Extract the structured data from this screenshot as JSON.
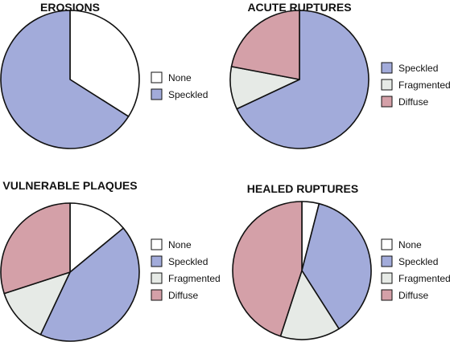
{
  "colors": {
    "none": "#ffffff",
    "speckled": "#a2abda",
    "fragmented": "#e6eae6",
    "diffuse": "#d4a0a8",
    "stroke": "#111111"
  },
  "chart_data": [
    {
      "type": "pie",
      "title": "EROSIONS",
      "slices": [
        {
          "label": "None",
          "value": 34,
          "color_key": "none"
        },
        {
          "label": "Speckled",
          "value": 66,
          "color_key": "speckled"
        }
      ],
      "legend": [
        "None",
        "Speckled"
      ],
      "legend_position": "right"
    },
    {
      "type": "pie",
      "title": "ACUTE RUPTURES",
      "slices": [
        {
          "label": "Speckled",
          "value": 68,
          "color_key": "speckled"
        },
        {
          "label": "Fragmented",
          "value": 10,
          "color_key": "fragmented"
        },
        {
          "label": "Diffuse",
          "value": 22,
          "color_key": "diffuse"
        }
      ],
      "legend": [
        "Speckled",
        "Fragmented",
        "Diffuse"
      ],
      "legend_position": "right"
    },
    {
      "type": "pie",
      "title": "VULNERABLE PLAQUES",
      "slices": [
        {
          "label": "None",
          "value": 14,
          "color_key": "none"
        },
        {
          "label": "Speckled",
          "value": 43,
          "color_key": "speckled"
        },
        {
          "label": "Fragmented",
          "value": 13,
          "color_key": "fragmented"
        },
        {
          "label": "Diffuse",
          "value": 30,
          "color_key": "diffuse"
        }
      ],
      "legend": [
        "None",
        "Speckled",
        "Fragmented",
        "Diffuse"
      ],
      "legend_position": "right"
    },
    {
      "type": "pie",
      "title": "HEALED RUPTURES",
      "slices": [
        {
          "label": "None",
          "value": 4,
          "color_key": "none"
        },
        {
          "label": "Speckled",
          "value": 37,
          "color_key": "speckled"
        },
        {
          "label": "Fragmented",
          "value": 14,
          "color_key": "fragmented"
        },
        {
          "label": "Diffuse",
          "value": 45,
          "color_key": "diffuse"
        }
      ],
      "legend": [
        "None",
        "Speckled",
        "Fragmented",
        "Diffuse"
      ],
      "legend_position": "right"
    }
  ]
}
